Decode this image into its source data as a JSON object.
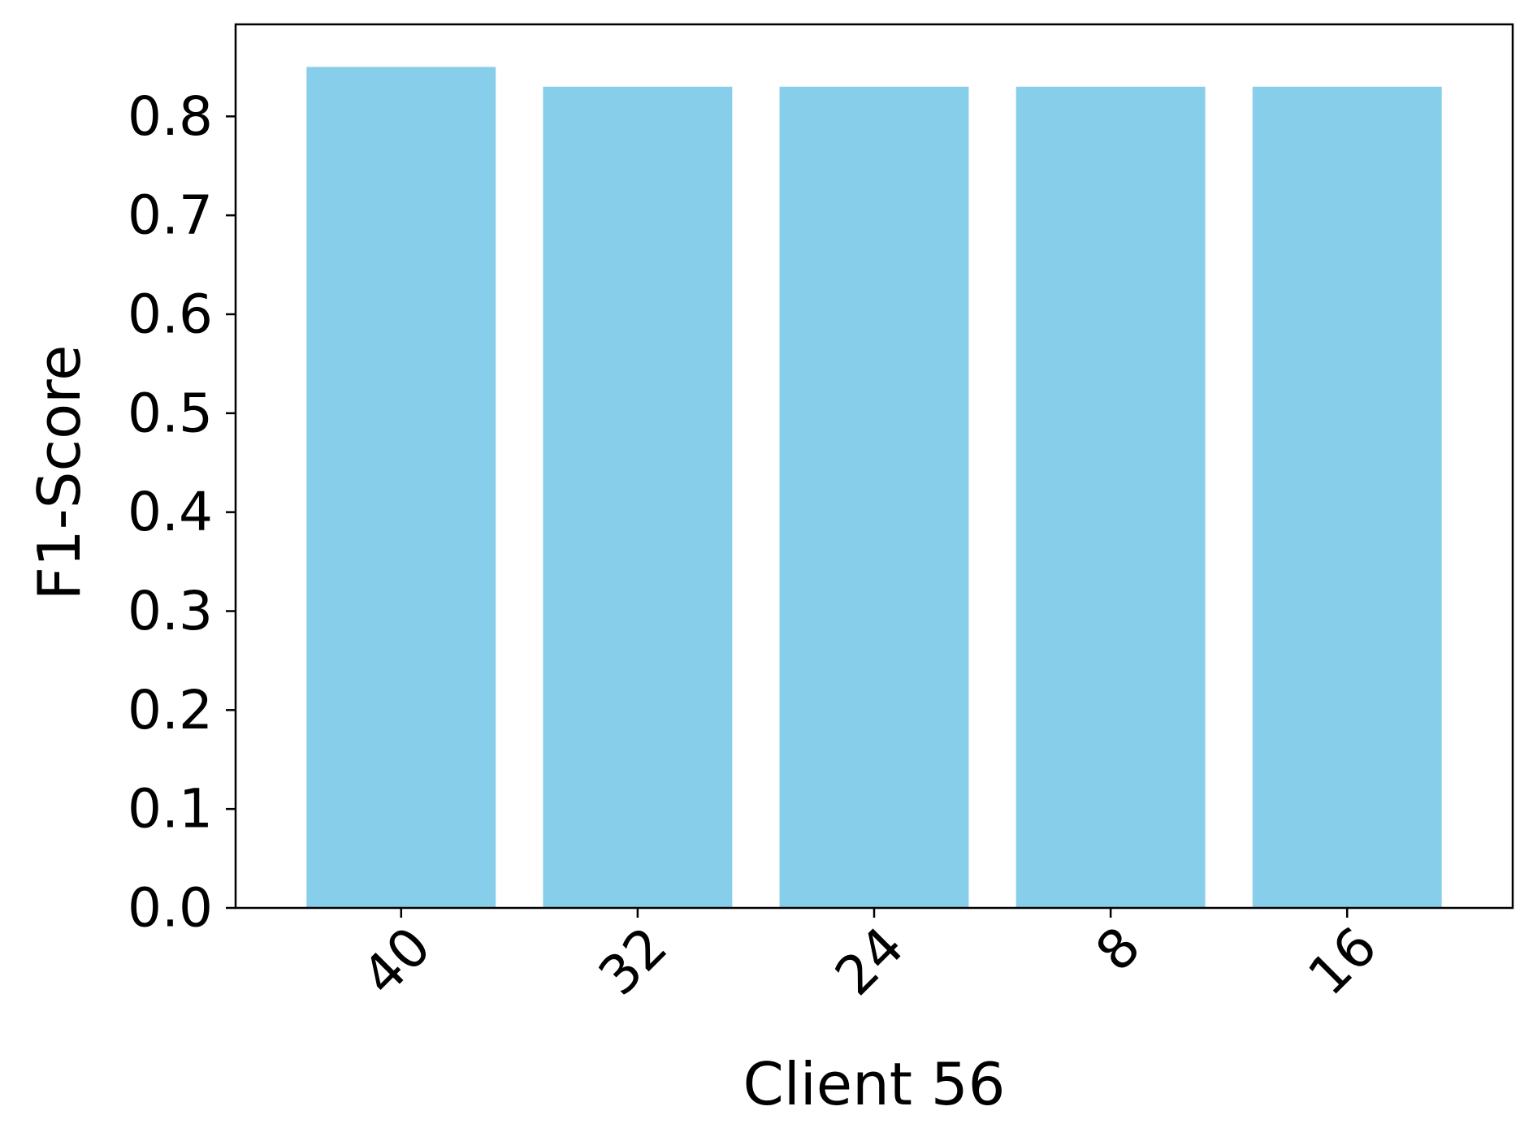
{
  "chart_data": {
    "type": "bar",
    "categories": [
      "40",
      "32",
      "24",
      "8",
      "16"
    ],
    "values": [
      0.85,
      0.83,
      0.83,
      0.83,
      0.83
    ],
    "title": "",
    "xlabel": "Client 56",
    "ylabel": "F1-Score",
    "ylim": [
      0,
      0.893
    ],
    "yticks": [
      0.0,
      0.1,
      0.2,
      0.3,
      0.4,
      0.5,
      0.6,
      0.7,
      0.8
    ],
    "ytick_labels": [
      "0.0",
      "0.1",
      "0.2",
      "0.3",
      "0.4",
      "0.5",
      "0.6",
      "0.7",
      "0.8"
    ],
    "grid": false,
    "bar_color": "#87CEEB",
    "xtick_rotation_deg": 45
  }
}
